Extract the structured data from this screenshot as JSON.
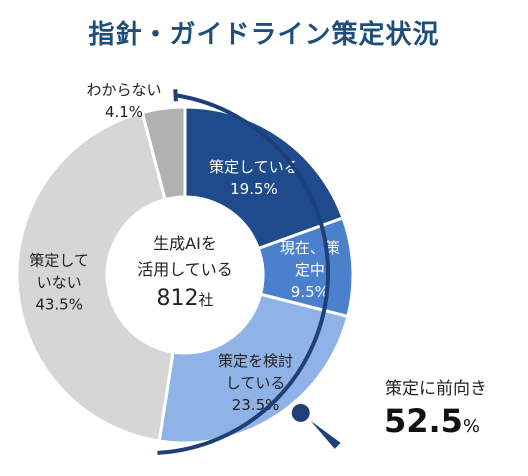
{
  "title": "指針・ガイドライン策定状況",
  "chart_data": {
    "type": "pie",
    "donut": true,
    "center_label": {
      "line1": "生成AIを",
      "line2": "活用している",
      "count": "812",
      "unit": "社"
    },
    "slices": [
      {
        "label_lines": [
          "策定している"
        ],
        "value": 19.5,
        "value_text": "19.5%",
        "color": "#1f4b8c"
      },
      {
        "label_lines": [
          "現在、策",
          "定中"
        ],
        "value": 9.5,
        "value_text": "9.5%",
        "color": "#4a80cc"
      },
      {
        "label_lines": [
          "策定を検討",
          "している"
        ],
        "value": 23.5,
        "value_text": "23.5%",
        "color": "#8fb3e6"
      },
      {
        "label_lines": [
          "策定して",
          "いない"
        ],
        "value": 43.5,
        "value_text": "43.5%",
        "color": "#d6d6d6"
      },
      {
        "label_lines": [
          "わからない"
        ],
        "value": 4.1,
        "value_text": "4.1%",
        "color": "#b1b1b1"
      }
    ],
    "callout": {
      "label": "策定に前向き",
      "value": "52.5",
      "unit": "%",
      "color": "#1f3f7a"
    }
  }
}
